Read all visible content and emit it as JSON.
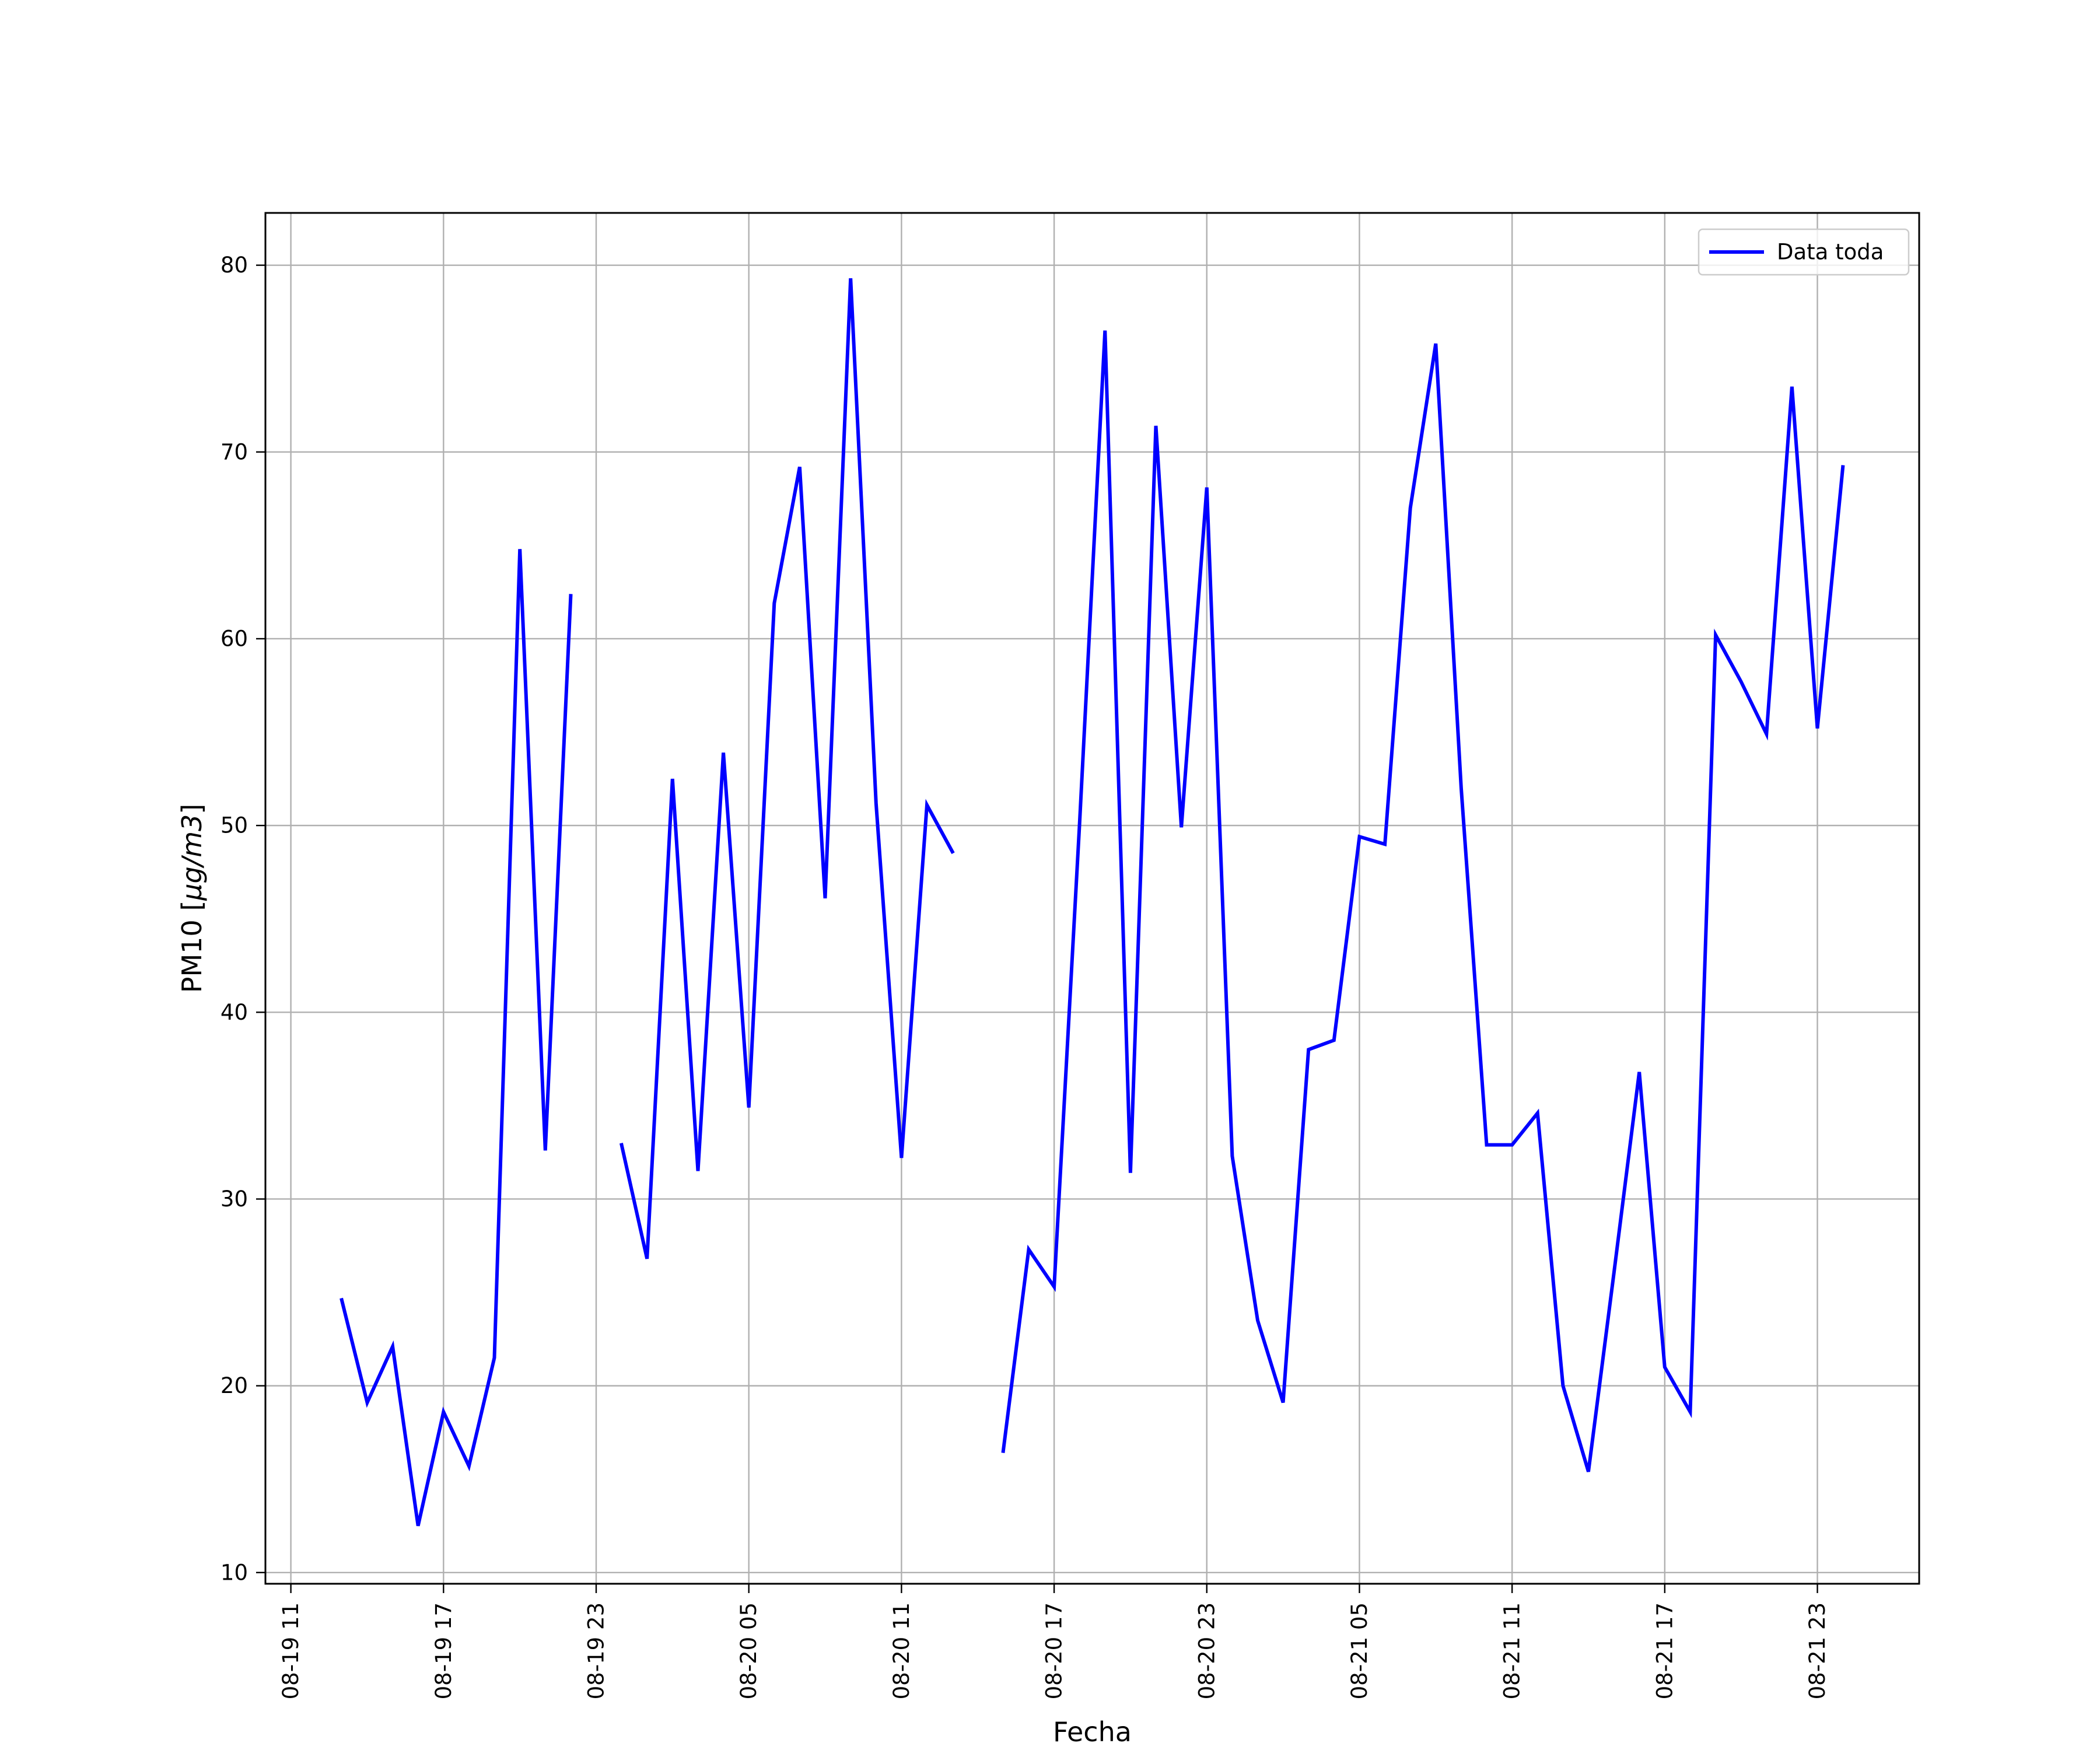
{
  "chart_data": {
    "type": "line",
    "title": "",
    "xlabel": "Fecha",
    "ylabel": "PM10 [μg/m3]",
    "ylabel_parts": {
      "prefix": "PM10 [",
      "unit": "μg/m3",
      "suffix": "]"
    },
    "x_range": [
      "2019-08-19 10:00",
      "2019-08-22 03:00"
    ],
    "ylim": [
      9.4,
      82.8
    ],
    "grid": true,
    "legend_position": "top-right",
    "x_tick_labels": [
      "08-19 11",
      "08-19 17",
      "08-19 23",
      "08-20 05",
      "08-20 11",
      "08-20 17",
      "08-20 23",
      "08-21 05",
      "08-21 11",
      "08-21 17",
      "08-21 23"
    ],
    "x_tick_values": [
      "2019-08-19 11:00",
      "2019-08-19 17:00",
      "2019-08-19 23:00",
      "2019-08-20 05:00",
      "2019-08-20 11:00",
      "2019-08-20 17:00",
      "2019-08-20 23:00",
      "2019-08-21 05:00",
      "2019-08-21 11:00",
      "2019-08-21 17:00",
      "2019-08-21 23:00"
    ],
    "y_ticks": [
      10,
      20,
      30,
      40,
      50,
      60,
      70,
      80
    ],
    "series": [
      {
        "name": "Data toda",
        "color": "#0000ff",
        "x": [
          "2019-08-19 13:00",
          "2019-08-19 14:00",
          "2019-08-19 15:00",
          "2019-08-19 16:00",
          "2019-08-19 17:00",
          "2019-08-19 18:00",
          "2019-08-19 19:00",
          "2019-08-19 20:00",
          "2019-08-19 21:00",
          "2019-08-19 22:00",
          "2019-08-19 23:00",
          "2019-08-20 00:00",
          "2019-08-20 01:00",
          "2019-08-20 02:00",
          "2019-08-20 03:00",
          "2019-08-20 04:00",
          "2019-08-20 05:00",
          "2019-08-20 06:00",
          "2019-08-20 07:00",
          "2019-08-20 08:00",
          "2019-08-20 09:00",
          "2019-08-20 10:00",
          "2019-08-20 11:00",
          "2019-08-20 12:00",
          "2019-08-20 13:00",
          "2019-08-20 14:00",
          "2019-08-20 15:00",
          "2019-08-20 16:00",
          "2019-08-20 17:00",
          "2019-08-20 18:00",
          "2019-08-20 19:00",
          "2019-08-20 20:00",
          "2019-08-20 21:00",
          "2019-08-20 22:00",
          "2019-08-20 23:00",
          "2019-08-21 00:00",
          "2019-08-21 01:00",
          "2019-08-21 02:00",
          "2019-08-21 03:00",
          "2019-08-21 04:00",
          "2019-08-21 05:00",
          "2019-08-21 06:00",
          "2019-08-21 07:00",
          "2019-08-21 08:00",
          "2019-08-21 09:00",
          "2019-08-21 10:00",
          "2019-08-21 11:00",
          "2019-08-21 12:00",
          "2019-08-21 13:00",
          "2019-08-21 14:00",
          "2019-08-21 15:00",
          "2019-08-21 16:00",
          "2019-08-21 17:00",
          "2019-08-21 18:00",
          "2019-08-21 19:00",
          "2019-08-21 20:00",
          "2019-08-21 21:00",
          "2019-08-21 22:00",
          "2019-08-21 23:00",
          "2019-08-22 00:00"
        ],
        "y": [
          24.6,
          19.1,
          22.1,
          12.5,
          18.6,
          15.7,
          21.5,
          64.8,
          32.6,
          62.3,
          null,
          32.9,
          26.8,
          52.5,
          31.5,
          53.9,
          34.9,
          61.9,
          69.2,
          46.1,
          79.3,
          51.2,
          32.2,
          51.1,
          48.6,
          null,
          16.5,
          27.3,
          25.3,
          50.1,
          76.5,
          31.4,
          71.4,
          49.9,
          68.1,
          32.3,
          23.5,
          19.1,
          38.0,
          38.5,
          49.4,
          49.0,
          67.0,
          75.8,
          52.0,
          32.9,
          32.9,
          34.6,
          20.0,
          15.4,
          26.0,
          36.8,
          21.0,
          18.6,
          60.2,
          57.7,
          54.9,
          73.5,
          55.2,
          69.2
        ]
      }
    ]
  }
}
